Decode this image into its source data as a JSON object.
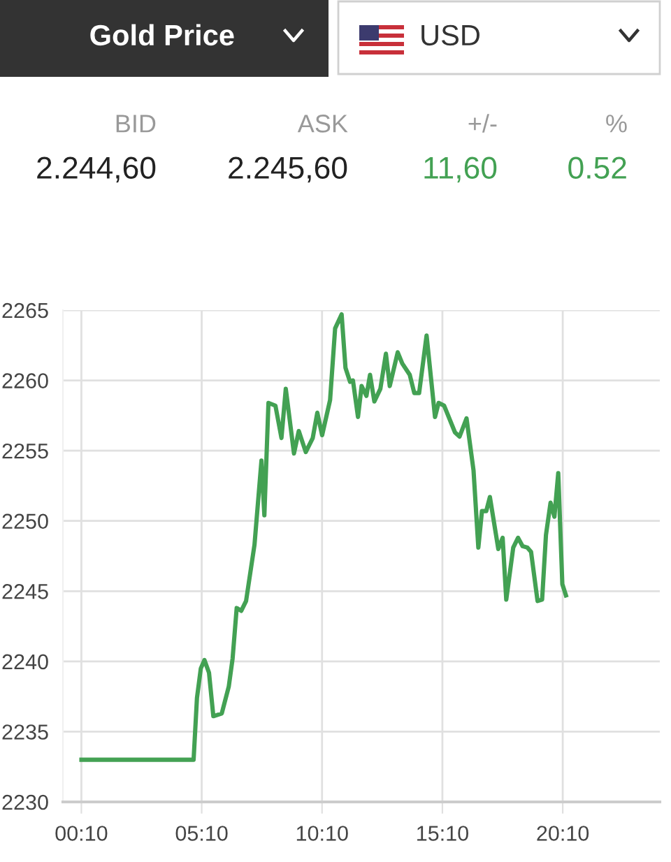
{
  "chart_data": {
    "type": "line",
    "title": "Gold Price",
    "annotations": [
      "USD",
      "BID",
      "ASK",
      "+/-",
      "%",
      "2.244,60",
      "2.245,60",
      "11,60",
      "0.52"
    ],
    "x": [
      0.17,
      4.83,
      4.97,
      5.13,
      5.28,
      5.47,
      5.65,
      6.0,
      6.29,
      6.45,
      6.62,
      6.81,
      7.01,
      7.36,
      7.65,
      7.77,
      7.94,
      8.23,
      8.48,
      8.66,
      9.0,
      9.2,
      9.49,
      9.78,
      9.97,
      10.17,
      10.5,
      10.71,
      10.98,
      11.14,
      11.33,
      11.45,
      11.66,
      11.81,
      12.01,
      12.16,
      12.34,
      12.59,
      12.82,
      12.98,
      13.31,
      13.5,
      13.81,
      14.0,
      14.2,
      14.51,
      14.86,
      15.01,
      15.24,
      15.69,
      15.88,
      16.17,
      16.46,
      16.66,
      16.81,
      16.99,
      17.14,
      17.49,
      17.67,
      17.82,
      18.11,
      18.31,
      18.5,
      18.7,
      18.85,
      19.12,
      19.31,
      19.47,
      19.66,
      19.82,
      19.98,
      20.15,
      20.3
    ],
    "series": [
      {
        "color": "#43a153",
        "values": [
          2233.0,
          2233.0,
          2237.4,
          2239.5,
          2240.1,
          2239.2,
          2236.1,
          2236.3,
          2238.2,
          2240.2,
          2243.8,
          2243.6,
          2244.3,
          2248.3,
          2254.3,
          2250.4,
          2258.4,
          2258.2,
          2255.9,
          2259.4,
          2254.8,
          2256.4,
          2254.9,
          2255.9,
          2257.7,
          2256.1,
          2258.6,
          2263.7,
          2264.7,
          2260.9,
          2259.9,
          2260.0,
          2257.4,
          2259.6,
          2258.9,
          2260.4,
          2258.5,
          2259.4,
          2261.9,
          2259.6,
          2262.0,
          2261.2,
          2260.4,
          2259.1,
          2259.1,
          2263.2,
          2257.4,
          2258.4,
          2258.2,
          2256.3,
          2256.0,
          2257.3,
          2253.6,
          2248.1,
          2250.7,
          2250.7,
          2251.7,
          2248.0,
          2248.8,
          2244.4,
          2248.1,
          2248.8,
          2248.2,
          2248.1,
          2247.8,
          2244.3,
          2244.4,
          2249.0,
          2251.3,
          2250.3,
          2253.4,
          2245.5,
          2244.7
        ]
      }
    ],
    "xlim": [
      -0.6,
      24.2
    ],
    "xticks": [
      {
        "value": 0.1667,
        "label": "00:10"
      },
      {
        "value": 5.1667,
        "label": "05:10"
      },
      {
        "value": 10.1667,
        "label": "10:10"
      },
      {
        "value": 15.1667,
        "label": "15:10"
      },
      {
        "value": 20.1667,
        "label": "20:10"
      }
    ],
    "ylim": [
      2230,
      2265
    ],
    "yticks": [
      2230,
      2235,
      2240,
      2245,
      2250,
      2255,
      2260,
      2265
    ],
    "grid": true,
    "marker": "none",
    "line_style": "solid"
  }
}
